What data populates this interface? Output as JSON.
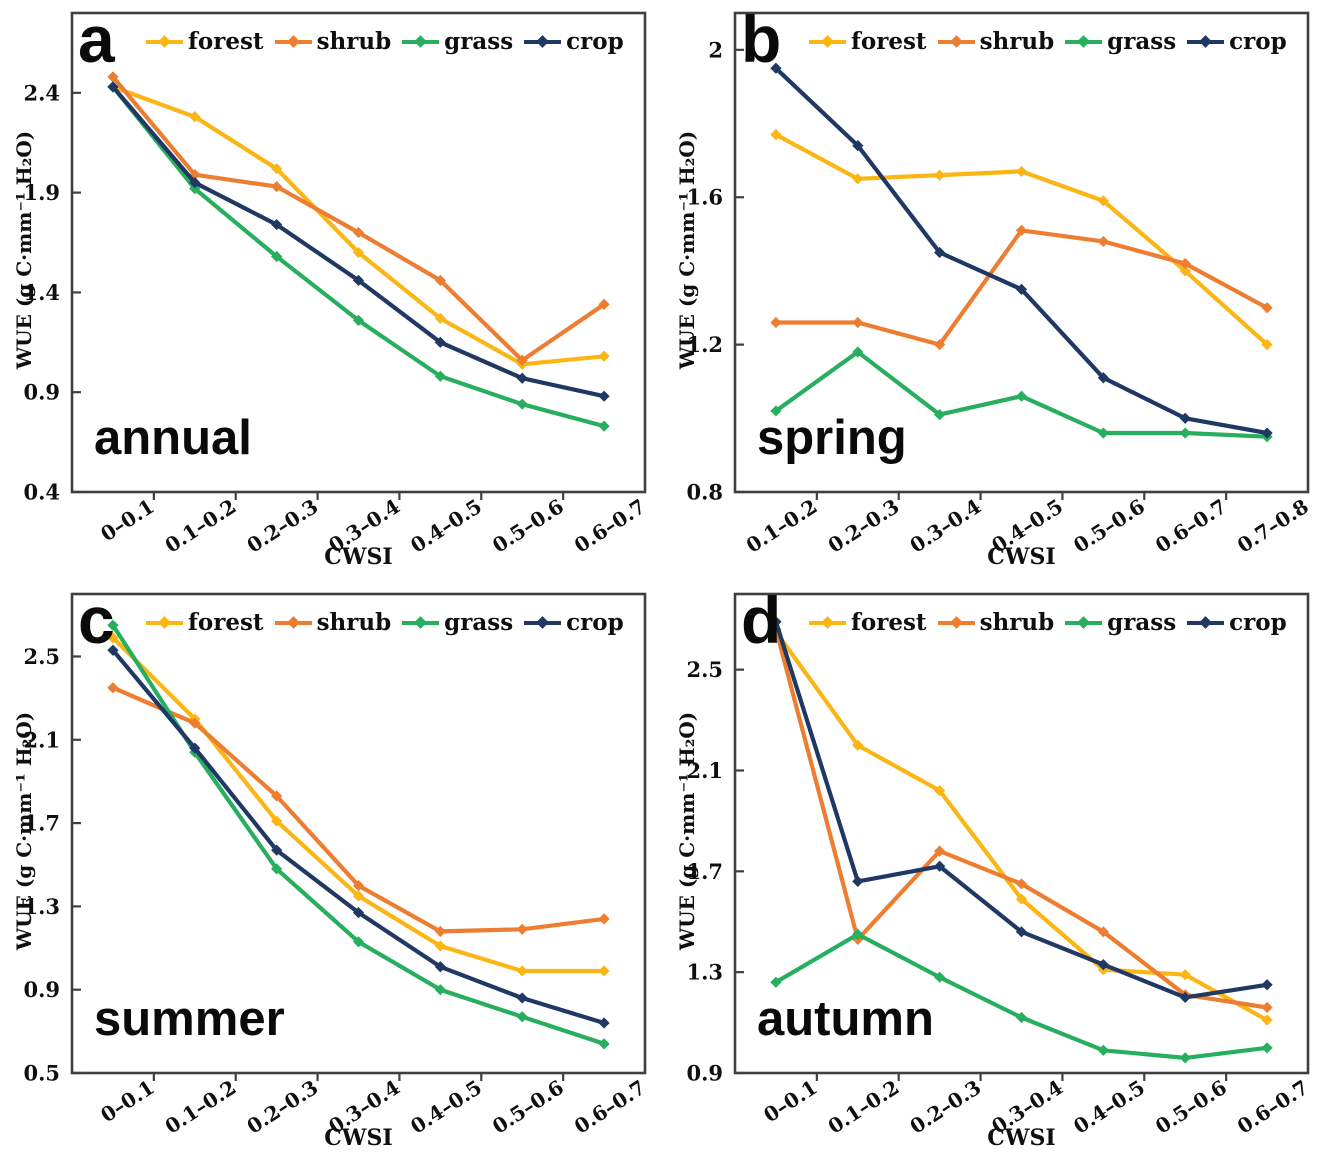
{
  "figure_title": "",
  "colors": {
    "forest": "#FBB615",
    "shrub": "#ED7D31",
    "grass": "#27AE5E",
    "crop": "#1F3864",
    "axis": "#3f3f3f",
    "text": "#0f0f0f"
  },
  "chart_data": [
    {
      "type": "line",
      "panel_letter": "a",
      "season": "annual",
      "xlabel": "CWSI",
      "ylabel": "WUE (g C·mm⁻¹ H₂O)",
      "categories": [
        "0–0.1",
        "0.1–0.2",
        "0.2–0.3",
        "0.3–0.4",
        "0.4–0.5",
        "0.5–0.6",
        "0.6–0.7"
      ],
      "yticks": [
        0.4,
        0.9,
        1.4,
        1.9,
        2.4
      ],
      "ylim": [
        0.4,
        2.8
      ],
      "legend_position": "top",
      "grid": false,
      "series": [
        {
          "name": "forest",
          "values": [
            2.43,
            2.28,
            2.02,
            1.6,
            1.27,
            1.04,
            1.08
          ]
        },
        {
          "name": "shrub",
          "values": [
            2.48,
            1.99,
            1.93,
            1.7,
            1.46,
            1.06,
            1.34
          ]
        },
        {
          "name": "grass",
          "values": [
            2.43,
            1.92,
            1.58,
            1.26,
            0.98,
            0.84,
            0.73
          ]
        },
        {
          "name": "crop",
          "values": [
            2.43,
            1.95,
            1.74,
            1.46,
            1.15,
            0.97,
            0.88
          ]
        }
      ]
    },
    {
      "type": "line",
      "panel_letter": "b",
      "season": "spring",
      "xlabel": "CWSI",
      "ylabel": "WUE (g C·mm⁻¹ H₂O)",
      "categories": [
        "0.1–0.2",
        "0.2–0.3",
        "0.3–0.4",
        "0.4–0.5",
        "0.5–0.6",
        "0.6–0.7",
        "0.7–0.8"
      ],
      "yticks": [
        0.8,
        1.2,
        1.6,
        2
      ],
      "ylim": [
        0.8,
        2.1
      ],
      "legend_position": "top",
      "grid": false,
      "series": [
        {
          "name": "forest",
          "values": [
            1.77,
            1.65,
            1.66,
            1.67,
            1.59,
            1.4,
            1.2
          ]
        },
        {
          "name": "shrub",
          "values": [
            1.26,
            1.26,
            1.2,
            1.51,
            1.48,
            1.42,
            1.3
          ]
        },
        {
          "name": "grass",
          "values": [
            1.02,
            1.18,
            1.01,
            1.06,
            0.96,
            0.96,
            0.95
          ]
        },
        {
          "name": "crop",
          "values": [
            1.95,
            1.74,
            1.45,
            1.35,
            1.11,
            1.0,
            0.96
          ]
        }
      ]
    },
    {
      "type": "line",
      "panel_letter": "c",
      "season": "summer",
      "xlabel": "CWSI",
      "ylabel": "WUE (g C·mm⁻¹ H₂O)",
      "categories": [
        "0–0.1",
        "0.1–0.2",
        "0.2–0.3",
        "0.3–0.4",
        "0.4–0.5",
        "0.5–0.6",
        "0.6–0.7"
      ],
      "yticks": [
        0.5,
        0.9,
        1.3,
        1.7,
        2.1,
        2.5
      ],
      "ylim": [
        0.5,
        2.8
      ],
      "legend_position": "top",
      "grid": false,
      "series": [
        {
          "name": "forest",
          "values": [
            2.59,
            2.2,
            1.71,
            1.35,
            1.11,
            0.99,
            0.99
          ]
        },
        {
          "name": "shrub",
          "values": [
            2.35,
            2.18,
            1.83,
            1.4,
            1.18,
            1.19,
            1.24
          ]
        },
        {
          "name": "grass",
          "values": [
            2.65,
            2.04,
            1.48,
            1.13,
            0.9,
            0.77,
            0.64
          ]
        },
        {
          "name": "crop",
          "values": [
            2.53,
            2.06,
            1.57,
            1.27,
            1.01,
            0.86,
            0.74
          ]
        }
      ]
    },
    {
      "type": "line",
      "panel_letter": "d",
      "season": "autumn",
      "xlabel": "CWSI",
      "ylabel": "WUE (g C·mm⁻¹ H₂O)",
      "categories": [
        "0–0.1",
        "0.1–0.2",
        "0.2–0.3",
        "0.3–0.4",
        "0.4–0.5",
        "0.5–0.6",
        "0.6–0.7"
      ],
      "yticks": [
        0.9,
        1.3,
        1.7,
        2.1,
        2.5
      ],
      "ylim": [
        0.9,
        2.8
      ],
      "legend_position": "top",
      "grid": false,
      "series": [
        {
          "name": "forest",
          "values": [
            2.65,
            2.2,
            2.02,
            1.59,
            1.31,
            1.29,
            1.11
          ]
        },
        {
          "name": "shrub",
          "values": [
            2.66,
            1.43,
            1.78,
            1.65,
            1.46,
            1.21,
            1.16
          ]
        },
        {
          "name": "grass",
          "values": [
            1.26,
            1.45,
            1.28,
            1.12,
            0.99,
            0.96,
            1.0
          ]
        },
        {
          "name": "crop",
          "values": [
            2.69,
            1.66,
            1.72,
            1.46,
            1.33,
            1.2,
            1.25
          ]
        }
      ]
    }
  ]
}
